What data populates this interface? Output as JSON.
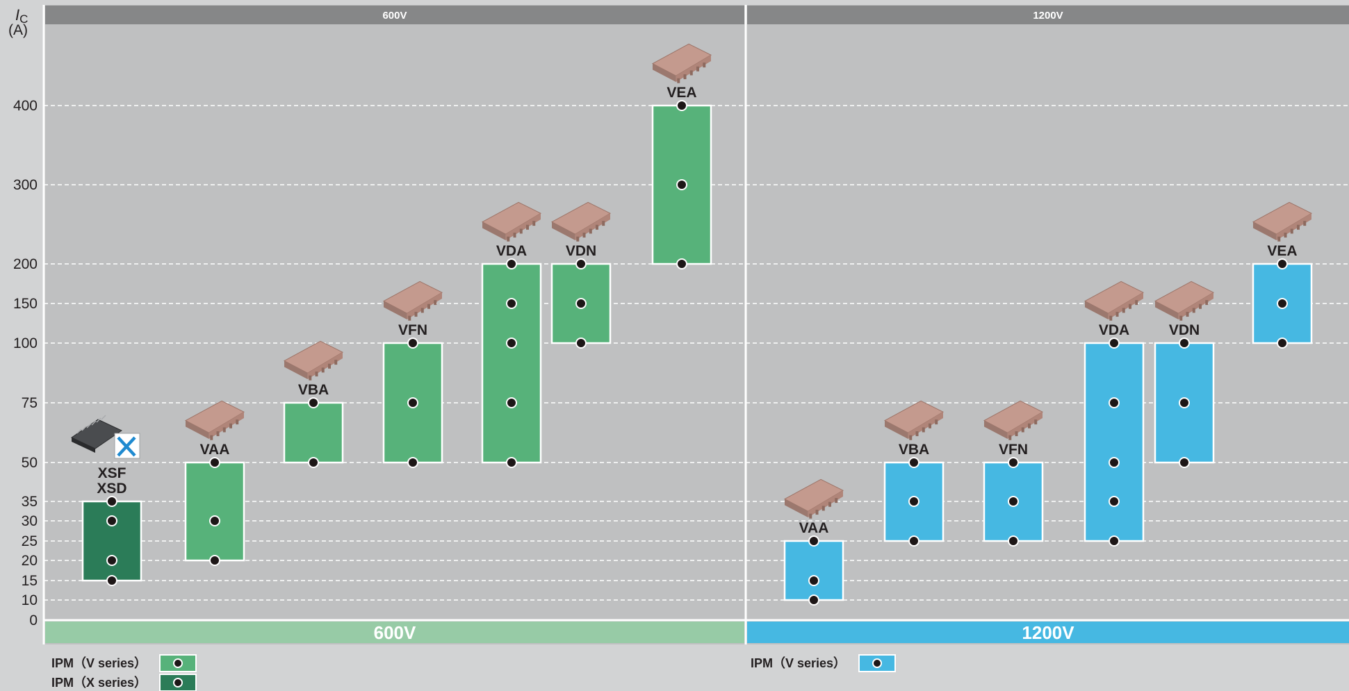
{
  "chart_data": {
    "type": "range-bar",
    "y_axis": {
      "label_main": "I",
      "label_sub": "C",
      "unit": "(A)",
      "ticks": [
        0,
        10,
        15,
        20,
        25,
        30,
        35,
        50,
        75,
        100,
        150,
        200,
        300,
        400
      ],
      "scale": "piecewise"
    },
    "grid": true,
    "groups": [
      {
        "voltage": "600V",
        "header": "600V",
        "footer": "600V",
        "products": [
          {
            "label": "XSF\nXSD",
            "series": "x",
            "min": 15,
            "max": 35,
            "points": [
              15,
              20,
              30,
              35
            ],
            "icon": "ipm-x-series-module-icon"
          },
          {
            "label": "VAA",
            "series": "v",
            "min": 20,
            "max": 50,
            "points": [
              20,
              30,
              50
            ],
            "icon": "ipm-module-icon"
          },
          {
            "label": "VBA",
            "series": "v",
            "min": 50,
            "max": 75,
            "points": [
              50,
              75
            ],
            "icon": "ipm-module-icon"
          },
          {
            "label": "VFN",
            "series": "v",
            "min": 50,
            "max": 100,
            "points": [
              50,
              75,
              100
            ],
            "icon": "ipm-module-icon"
          },
          {
            "label": "VDA",
            "series": "v",
            "min": 50,
            "max": 200,
            "points": [
              50,
              75,
              100,
              150,
              200
            ],
            "icon": "ipm-module-icon"
          },
          {
            "label": "VDN",
            "series": "v",
            "min": 100,
            "max": 200,
            "points": [
              100,
              150,
              200
            ],
            "icon": "ipm-module-icon"
          },
          {
            "label": "VEA",
            "series": "v",
            "min": 200,
            "max": 400,
            "points": [
              200,
              300,
              400
            ],
            "icon": "ipm-module-icon"
          }
        ]
      },
      {
        "voltage": "1200V",
        "header": "1200V",
        "footer": "1200V",
        "products": [
          {
            "label": "VAA",
            "series": "v1200",
            "min": 10,
            "max": 25,
            "points": [
              10,
              15,
              25
            ],
            "icon": "ipm-module-icon"
          },
          {
            "label": "VBA",
            "series": "v1200",
            "min": 25,
            "max": 50,
            "points": [
              25,
              35,
              50
            ],
            "icon": "ipm-module-icon"
          },
          {
            "label": "VFN",
            "series": "v1200",
            "min": 25,
            "max": 50,
            "points": [
              25,
              35,
              50
            ],
            "icon": "ipm-module-icon"
          },
          {
            "label": "VDA",
            "series": "v1200",
            "min": 25,
            "max": 100,
            "points": [
              25,
              35,
              50,
              75,
              100
            ],
            "icon": "ipm-module-icon"
          },
          {
            "label": "VDN",
            "series": "v1200",
            "min": 50,
            "max": 100,
            "points": [
              50,
              75,
              100
            ],
            "icon": "ipm-module-icon"
          },
          {
            "label": "VEA",
            "series": "v1200",
            "min": 100,
            "max": 200,
            "points": [
              100,
              150,
              200
            ],
            "icon": "ipm-module-icon"
          }
        ]
      }
    ],
    "legend": [
      {
        "label": "IPM（V series）",
        "series": "v",
        "placement": "bottom-left"
      },
      {
        "label": "IPM（X series）",
        "series": "x",
        "placement": "bottom-left"
      },
      {
        "label": "IPM（V series）",
        "series": "v1200",
        "placement": "bottom-center"
      }
    ],
    "colors": {
      "v": "#57b27a",
      "x": "#2b7c58",
      "v1200": "#46b8e2",
      "footer600": "#97cba6",
      "footer1200": "#46b8e2",
      "header": "#868788",
      "plot_bg": "#bfc0c1",
      "page_bg": "#d2d3d4",
      "dot": "#1d1717",
      "module": "#c49a8e"
    }
  }
}
